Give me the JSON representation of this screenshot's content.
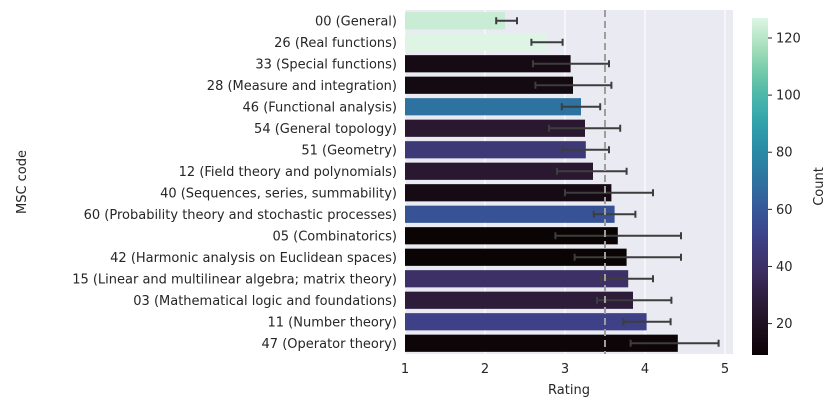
{
  "chart_data": {
    "type": "bar",
    "orientation": "horizontal",
    "xlabel": "Rating",
    "ylabel": "MSC code",
    "xlim": [
      1,
      5.1
    ],
    "xticks": [
      1,
      2,
      3,
      4,
      5
    ],
    "grid": true,
    "reference_line": {
      "value": 3.5,
      "style": "dashed"
    },
    "colorbar": {
      "label": "Count",
      "range": [
        9,
        127
      ],
      "ticks": [
        20,
        40,
        60,
        80,
        100,
        120
      ]
    },
    "categories": [
      "00 (General)",
      "26 (Real functions)",
      "33 (Special functions)",
      "28 (Measure and integration)",
      "46 (Functional analysis)",
      "54 (General topology)",
      "51 (Geometry)",
      "12 (Field theory and polynomials)",
      "40 (Sequences, series, summability)",
      "60 (Probability theory and stochastic processes)",
      "05 (Combinatorics)",
      "42 (Harmonic analysis on Euclidean spaces)",
      "15 (Linear and multilinear algebra; matrix theory)",
      "03 (Mathematical logic and foundations)",
      "11 (Number theory)",
      "47 (Operator theory)"
    ],
    "values": [
      2.25,
      2.77,
      3.07,
      3.1,
      3.2,
      3.25,
      3.26,
      3.35,
      3.58,
      3.62,
      3.66,
      3.77,
      3.79,
      3.85,
      4.02,
      4.41
    ],
    "error_low": [
      2.14,
      2.58,
      2.6,
      2.63,
      2.96,
      2.8,
      2.97,
      2.9,
      3.0,
      3.36,
      2.88,
      3.12,
      3.45,
      3.4,
      3.73,
      3.82
    ],
    "error_high": [
      2.4,
      2.97,
      3.55,
      3.58,
      3.44,
      3.69,
      3.55,
      3.77,
      4.1,
      3.88,
      4.45,
      4.45,
      4.1,
      4.33,
      4.32,
      4.92
    ],
    "counts": [
      123,
      127,
      15,
      14,
      70,
      25,
      45,
      25,
      15,
      58,
      9,
      9,
      40,
      28,
      50,
      10
    ]
  }
}
